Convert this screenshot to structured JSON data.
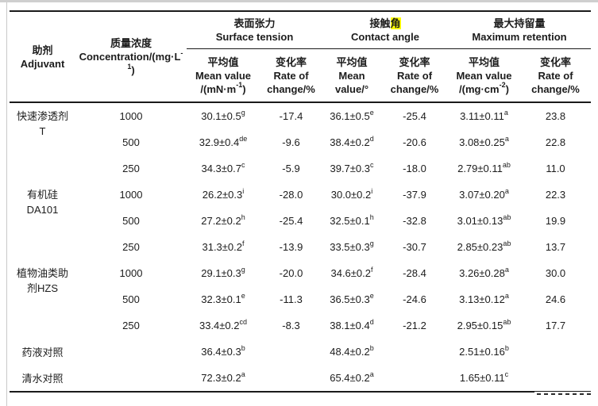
{
  "table": {
    "row_headers": {
      "adjuvant": {
        "zh": "助剂",
        "en": "Adjuvant"
      },
      "concentration": {
        "zh": "质量浓度",
        "en": "Concentration/(mg·L^{-1})"
      }
    },
    "col_groups": [
      {
        "zh": "表面张力",
        "en": "Surface tension"
      },
      {
        "zh": "接触~{角}",
        "en": "Contact angle"
      },
      {
        "zh": "最大持留量",
        "en": "Maximum retention"
      }
    ],
    "sub_headers": [
      {
        "zh": "平均值",
        "en": "Mean value",
        "unit": "/(mN·m^{-1})"
      },
      {
        "zh": "变化率",
        "en": "Rate of",
        "unit": "change/%"
      },
      {
        "zh": "平均值",
        "en": "Mean",
        "unit": "value/°"
      },
      {
        "zh": "变化率",
        "en": "Rate of",
        "unit": "change/%"
      },
      {
        "zh": "平均值",
        "en": "Mean value",
        "unit": "/(mg·cm^{-2})"
      },
      {
        "zh": "变化率",
        "en": "Rate of",
        "unit": "change/%"
      }
    ],
    "rows": [
      {
        "adjuvant_lines": [
          "快速渗透剂",
          "T"
        ],
        "rowspan": 3,
        "concentration": "1000",
        "cells": [
          "30.1±0.5^{g}",
          "-17.4",
          "36.1±0.5^{e}",
          "-25.4",
          "3.11±0.11^{a}",
          "23.8"
        ]
      },
      {
        "concentration": "500",
        "cells": [
          "32.9±0.4^{de}",
          "-9.6",
          "38.4±0.2^{d}",
          "-20.6",
          "3.08±0.25^{a}",
          "22.8"
        ]
      },
      {
        "concentration": "250",
        "cells": [
          "34.3±0.7^{c}",
          "-5.9",
          "39.7±0.3^{c}",
          "-18.0",
          "2.79±0.11^{ab}",
          "11.0"
        ]
      },
      {
        "adjuvant_lines": [
          "有机硅",
          "DA101"
        ],
        "rowspan": 3,
        "concentration": "1000",
        "cells": [
          "26.2±0.3^{i}",
          "-28.0",
          "30.0±0.2^{i}",
          "-37.9",
          "3.07±0.20^{a}",
          "22.3"
        ]
      },
      {
        "concentration": "500",
        "cells": [
          "27.2±0.2^{h}",
          "-25.4",
          "32.5±0.1^{h}",
          "-32.8",
          "3.01±0.13^{ab}",
          "19.9"
        ]
      },
      {
        "concentration": "250",
        "cells": [
          "31.3±0.2^{f}",
          "-13.9",
          "33.5±0.3^{g}",
          "-30.7",
          "2.85±0.23^{ab}",
          "13.7"
        ]
      },
      {
        "adjuvant_lines": [
          "植物油类助",
          "剂HZS"
        ],
        "rowspan": 3,
        "concentration": "1000",
        "cells": [
          "29.1±0.3^{g}",
          "-20.0",
          "34.6±0.2^{f}",
          "-28.4",
          "3.26±0.28^{a}",
          "30.0"
        ]
      },
      {
        "concentration": "500",
        "cells": [
          "32.3±0.1^{e}",
          "-11.3",
          "36.5±0.3^{e}",
          "-24.6",
          "3.13±0.12^{a}",
          "24.6"
        ]
      },
      {
        "concentration": "250",
        "cells": [
          "33.4±0.2^{cd}",
          "-8.3",
          "38.1±0.4^{d}",
          "-21.2",
          "2.95±0.15^{ab}",
          "17.7"
        ]
      },
      {
        "adjuvant_lines": [
          "药液对照"
        ],
        "rowspan": 1,
        "concentration": "",
        "cells": [
          "36.4±0.3^{b}",
          "",
          "48.4±0.2^{b}",
          "",
          "2.51±0.16^{b}",
          ""
        ]
      },
      {
        "adjuvant_lines": [
          "清水对照"
        ],
        "rowspan": 1,
        "concentration": "",
        "cells": [
          "72.3±0.2^{a}",
          "",
          "65.4±0.2^{a}",
          "",
          "1.65±0.11^{c}",
          ""
        ]
      }
    ]
  },
  "colors": {
    "highlight": "#ffff00",
    "rule": "#1a1a1a",
    "text": "#1c1c1c",
    "edge_gray": "#cfcfcf"
  }
}
